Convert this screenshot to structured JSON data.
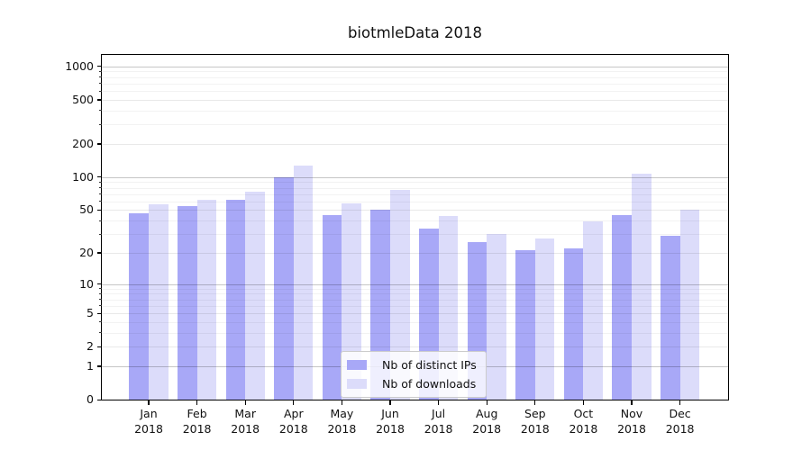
{
  "title": "biotmleData 2018",
  "chart_data": {
    "type": "bar",
    "title": "biotmleData 2018",
    "categories": [
      "Jan",
      "Feb",
      "Mar",
      "Apr",
      "May",
      "Jun",
      "Jul",
      "Aug",
      "Sep",
      "Oct",
      "Nov",
      "Dec"
    ],
    "year_label": "2018",
    "series": [
      {
        "name": "Nb of distinct IPs",
        "color": "#a8a8f7",
        "values": [
          47,
          54,
          62,
          100,
          45,
          50,
          34,
          25,
          21,
          22,
          45,
          29
        ]
      },
      {
        "name": "Nb of downloads",
        "color": "#dcdcfa",
        "values": [
          56,
          62,
          74,
          127,
          58,
          76,
          44,
          30,
          27,
          39,
          108,
          50
        ]
      }
    ],
    "yscale": "log1p",
    "yticks": [
      0,
      1,
      2,
      5,
      10,
      20,
      50,
      100,
      200,
      500,
      1000
    ],
    "minor_yticks": [
      3,
      4,
      6,
      7,
      8,
      9,
      30,
      40,
      60,
      70,
      80,
      90,
      300,
      400,
      600,
      700,
      800,
      900
    ],
    "ylim": [
      0,
      1270
    ],
    "xlabel": "",
    "ylabel": "",
    "grid": true,
    "legend_position": "lower center",
    "colors": {
      "grid_major": "#c7c7c7",
      "grid_minor": "#f1f1f1",
      "axis": "#000000"
    }
  }
}
